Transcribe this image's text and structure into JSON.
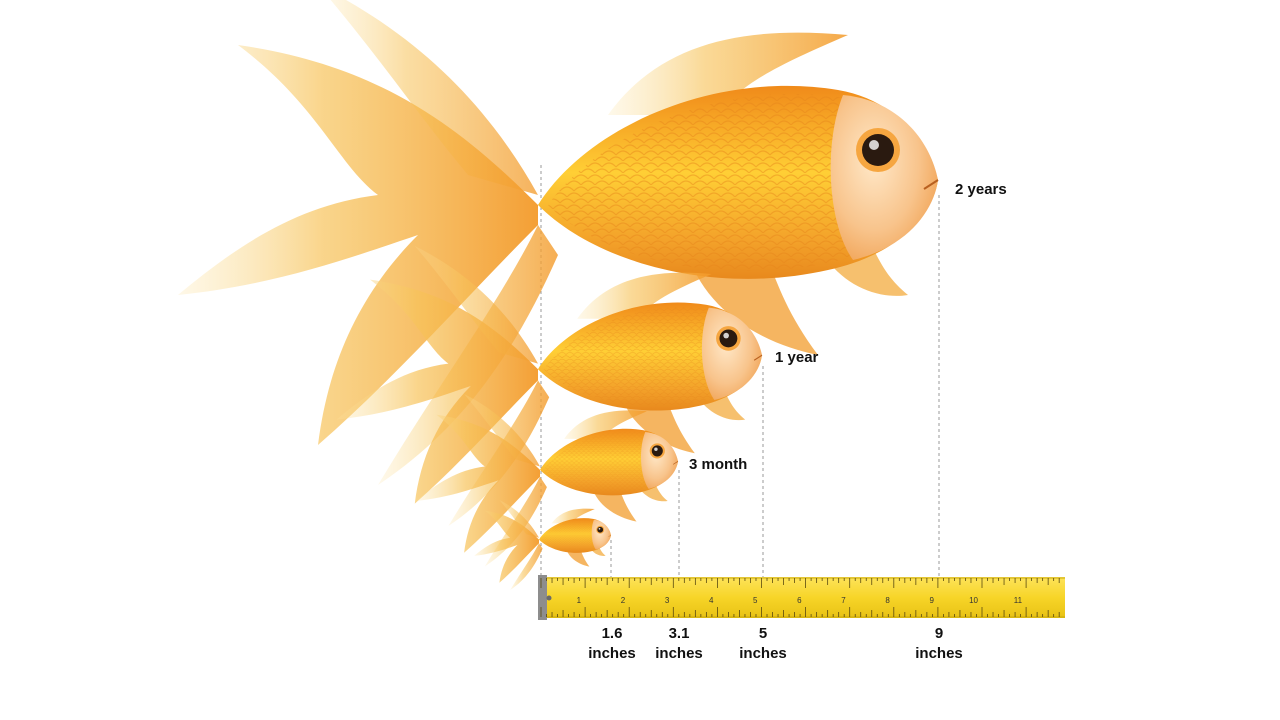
{
  "fish_stages": [
    {
      "age": "2 years",
      "length_value": "9",
      "length_unit": "inches",
      "length": 9
    },
    {
      "age": "1 year",
      "length_value": "5",
      "length_unit": "inches",
      "length": 5
    },
    {
      "age": "3 month",
      "length_value": "3.1",
      "length_unit": "inches",
      "length": 3.1
    },
    {
      "age": "",
      "length_value": "1.6",
      "length_unit": "inches",
      "length": 1.6
    }
  ],
  "ruler": {
    "numbers": [
      "1",
      "2",
      "3",
      "4",
      "5",
      "6",
      "7",
      "8",
      "9",
      "10",
      "11"
    ],
    "color": "#f7d528"
  },
  "colors": {
    "fish_body": "#f29a1e",
    "fish_highlight": "#ffd93a",
    "fin": "#f6c45c",
    "guide_line": "#9a9a9a"
  }
}
